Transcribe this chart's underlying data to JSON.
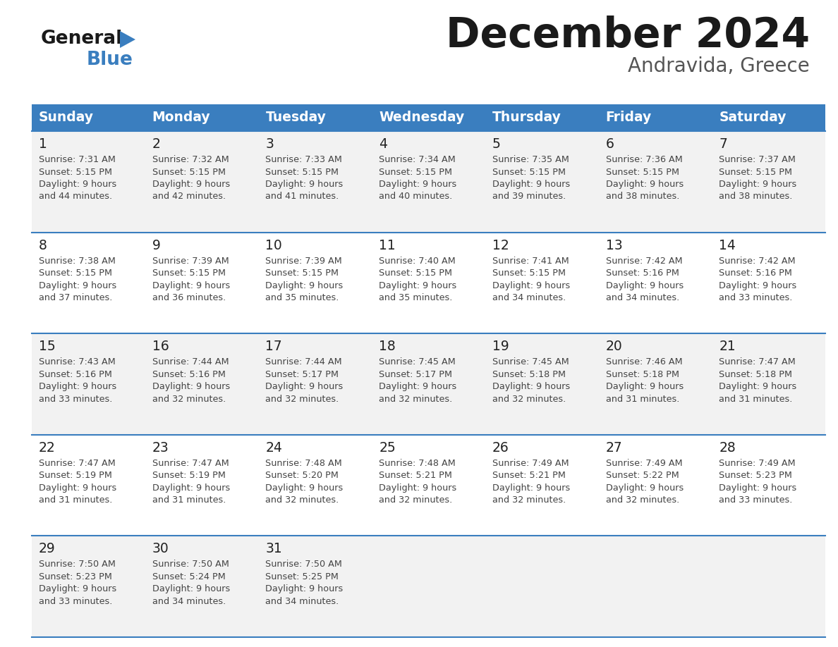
{
  "title": "December 2024",
  "subtitle": "Andravida, Greece",
  "header_color": "#3a7ebf",
  "header_text_color": "#ffffff",
  "day_names": [
    "Sunday",
    "Monday",
    "Tuesday",
    "Wednesday",
    "Thursday",
    "Friday",
    "Saturday"
  ],
  "bg_color": "#ffffff",
  "row_bg_colors": [
    "#f2f2f2",
    "#ffffff",
    "#f2f2f2",
    "#ffffff",
    "#f2f2f2"
  ],
  "divider_color": "#3a7ebf",
  "text_color": "#444444",
  "day_num_color": "#222222",
  "days": [
    {
      "day": 1,
      "col": 0,
      "row": 0,
      "sunrise": "7:31 AM",
      "sunset": "5:15 PM",
      "daylight_hours": 9,
      "daylight_minutes": 44
    },
    {
      "day": 2,
      "col": 1,
      "row": 0,
      "sunrise": "7:32 AM",
      "sunset": "5:15 PM",
      "daylight_hours": 9,
      "daylight_minutes": 42
    },
    {
      "day": 3,
      "col": 2,
      "row": 0,
      "sunrise": "7:33 AM",
      "sunset": "5:15 PM",
      "daylight_hours": 9,
      "daylight_minutes": 41
    },
    {
      "day": 4,
      "col": 3,
      "row": 0,
      "sunrise": "7:34 AM",
      "sunset": "5:15 PM",
      "daylight_hours": 9,
      "daylight_minutes": 40
    },
    {
      "day": 5,
      "col": 4,
      "row": 0,
      "sunrise": "7:35 AM",
      "sunset": "5:15 PM",
      "daylight_hours": 9,
      "daylight_minutes": 39
    },
    {
      "day": 6,
      "col": 5,
      "row": 0,
      "sunrise": "7:36 AM",
      "sunset": "5:15 PM",
      "daylight_hours": 9,
      "daylight_minutes": 38
    },
    {
      "day": 7,
      "col": 6,
      "row": 0,
      "sunrise": "7:37 AM",
      "sunset": "5:15 PM",
      "daylight_hours": 9,
      "daylight_minutes": 38
    },
    {
      "day": 8,
      "col": 0,
      "row": 1,
      "sunrise": "7:38 AM",
      "sunset": "5:15 PM",
      "daylight_hours": 9,
      "daylight_minutes": 37
    },
    {
      "day": 9,
      "col": 1,
      "row": 1,
      "sunrise": "7:39 AM",
      "sunset": "5:15 PM",
      "daylight_hours": 9,
      "daylight_minutes": 36
    },
    {
      "day": 10,
      "col": 2,
      "row": 1,
      "sunrise": "7:39 AM",
      "sunset": "5:15 PM",
      "daylight_hours": 9,
      "daylight_minutes": 35
    },
    {
      "day": 11,
      "col": 3,
      "row": 1,
      "sunrise": "7:40 AM",
      "sunset": "5:15 PM",
      "daylight_hours": 9,
      "daylight_minutes": 35
    },
    {
      "day": 12,
      "col": 4,
      "row": 1,
      "sunrise": "7:41 AM",
      "sunset": "5:15 PM",
      "daylight_hours": 9,
      "daylight_minutes": 34
    },
    {
      "day": 13,
      "col": 5,
      "row": 1,
      "sunrise": "7:42 AM",
      "sunset": "5:16 PM",
      "daylight_hours": 9,
      "daylight_minutes": 34
    },
    {
      "day": 14,
      "col": 6,
      "row": 1,
      "sunrise": "7:42 AM",
      "sunset": "5:16 PM",
      "daylight_hours": 9,
      "daylight_minutes": 33
    },
    {
      "day": 15,
      "col": 0,
      "row": 2,
      "sunrise": "7:43 AM",
      "sunset": "5:16 PM",
      "daylight_hours": 9,
      "daylight_minutes": 33
    },
    {
      "day": 16,
      "col": 1,
      "row": 2,
      "sunrise": "7:44 AM",
      "sunset": "5:16 PM",
      "daylight_hours": 9,
      "daylight_minutes": 32
    },
    {
      "day": 17,
      "col": 2,
      "row": 2,
      "sunrise": "7:44 AM",
      "sunset": "5:17 PM",
      "daylight_hours": 9,
      "daylight_minutes": 32
    },
    {
      "day": 18,
      "col": 3,
      "row": 2,
      "sunrise": "7:45 AM",
      "sunset": "5:17 PM",
      "daylight_hours": 9,
      "daylight_minutes": 32
    },
    {
      "day": 19,
      "col": 4,
      "row": 2,
      "sunrise": "7:45 AM",
      "sunset": "5:18 PM",
      "daylight_hours": 9,
      "daylight_minutes": 32
    },
    {
      "day": 20,
      "col": 5,
      "row": 2,
      "sunrise": "7:46 AM",
      "sunset": "5:18 PM",
      "daylight_hours": 9,
      "daylight_minutes": 31
    },
    {
      "day": 21,
      "col": 6,
      "row": 2,
      "sunrise": "7:47 AM",
      "sunset": "5:18 PM",
      "daylight_hours": 9,
      "daylight_minutes": 31
    },
    {
      "day": 22,
      "col": 0,
      "row": 3,
      "sunrise": "7:47 AM",
      "sunset": "5:19 PM",
      "daylight_hours": 9,
      "daylight_minutes": 31
    },
    {
      "day": 23,
      "col": 1,
      "row": 3,
      "sunrise": "7:47 AM",
      "sunset": "5:19 PM",
      "daylight_hours": 9,
      "daylight_minutes": 31
    },
    {
      "day": 24,
      "col": 2,
      "row": 3,
      "sunrise": "7:48 AM",
      "sunset": "5:20 PM",
      "daylight_hours": 9,
      "daylight_minutes": 32
    },
    {
      "day": 25,
      "col": 3,
      "row": 3,
      "sunrise": "7:48 AM",
      "sunset": "5:21 PM",
      "daylight_hours": 9,
      "daylight_minutes": 32
    },
    {
      "day": 26,
      "col": 4,
      "row": 3,
      "sunrise": "7:49 AM",
      "sunset": "5:21 PM",
      "daylight_hours": 9,
      "daylight_minutes": 32
    },
    {
      "day": 27,
      "col": 5,
      "row": 3,
      "sunrise": "7:49 AM",
      "sunset": "5:22 PM",
      "daylight_hours": 9,
      "daylight_minutes": 32
    },
    {
      "day": 28,
      "col": 6,
      "row": 3,
      "sunrise": "7:49 AM",
      "sunset": "5:23 PM",
      "daylight_hours": 9,
      "daylight_minutes": 33
    },
    {
      "day": 29,
      "col": 0,
      "row": 4,
      "sunrise": "7:50 AM",
      "sunset": "5:23 PM",
      "daylight_hours": 9,
      "daylight_minutes": 33
    },
    {
      "day": 30,
      "col": 1,
      "row": 4,
      "sunrise": "7:50 AM",
      "sunset": "5:24 PM",
      "daylight_hours": 9,
      "daylight_minutes": 34
    },
    {
      "day": 31,
      "col": 2,
      "row": 4,
      "sunrise": "7:50 AM",
      "sunset": "5:25 PM",
      "daylight_hours": 9,
      "daylight_minutes": 34
    }
  ],
  "logo_general_color": "#1a1a1a",
  "logo_blue_color": "#3a7ebf",
  "logo_triangle_color": "#3a7ebf"
}
